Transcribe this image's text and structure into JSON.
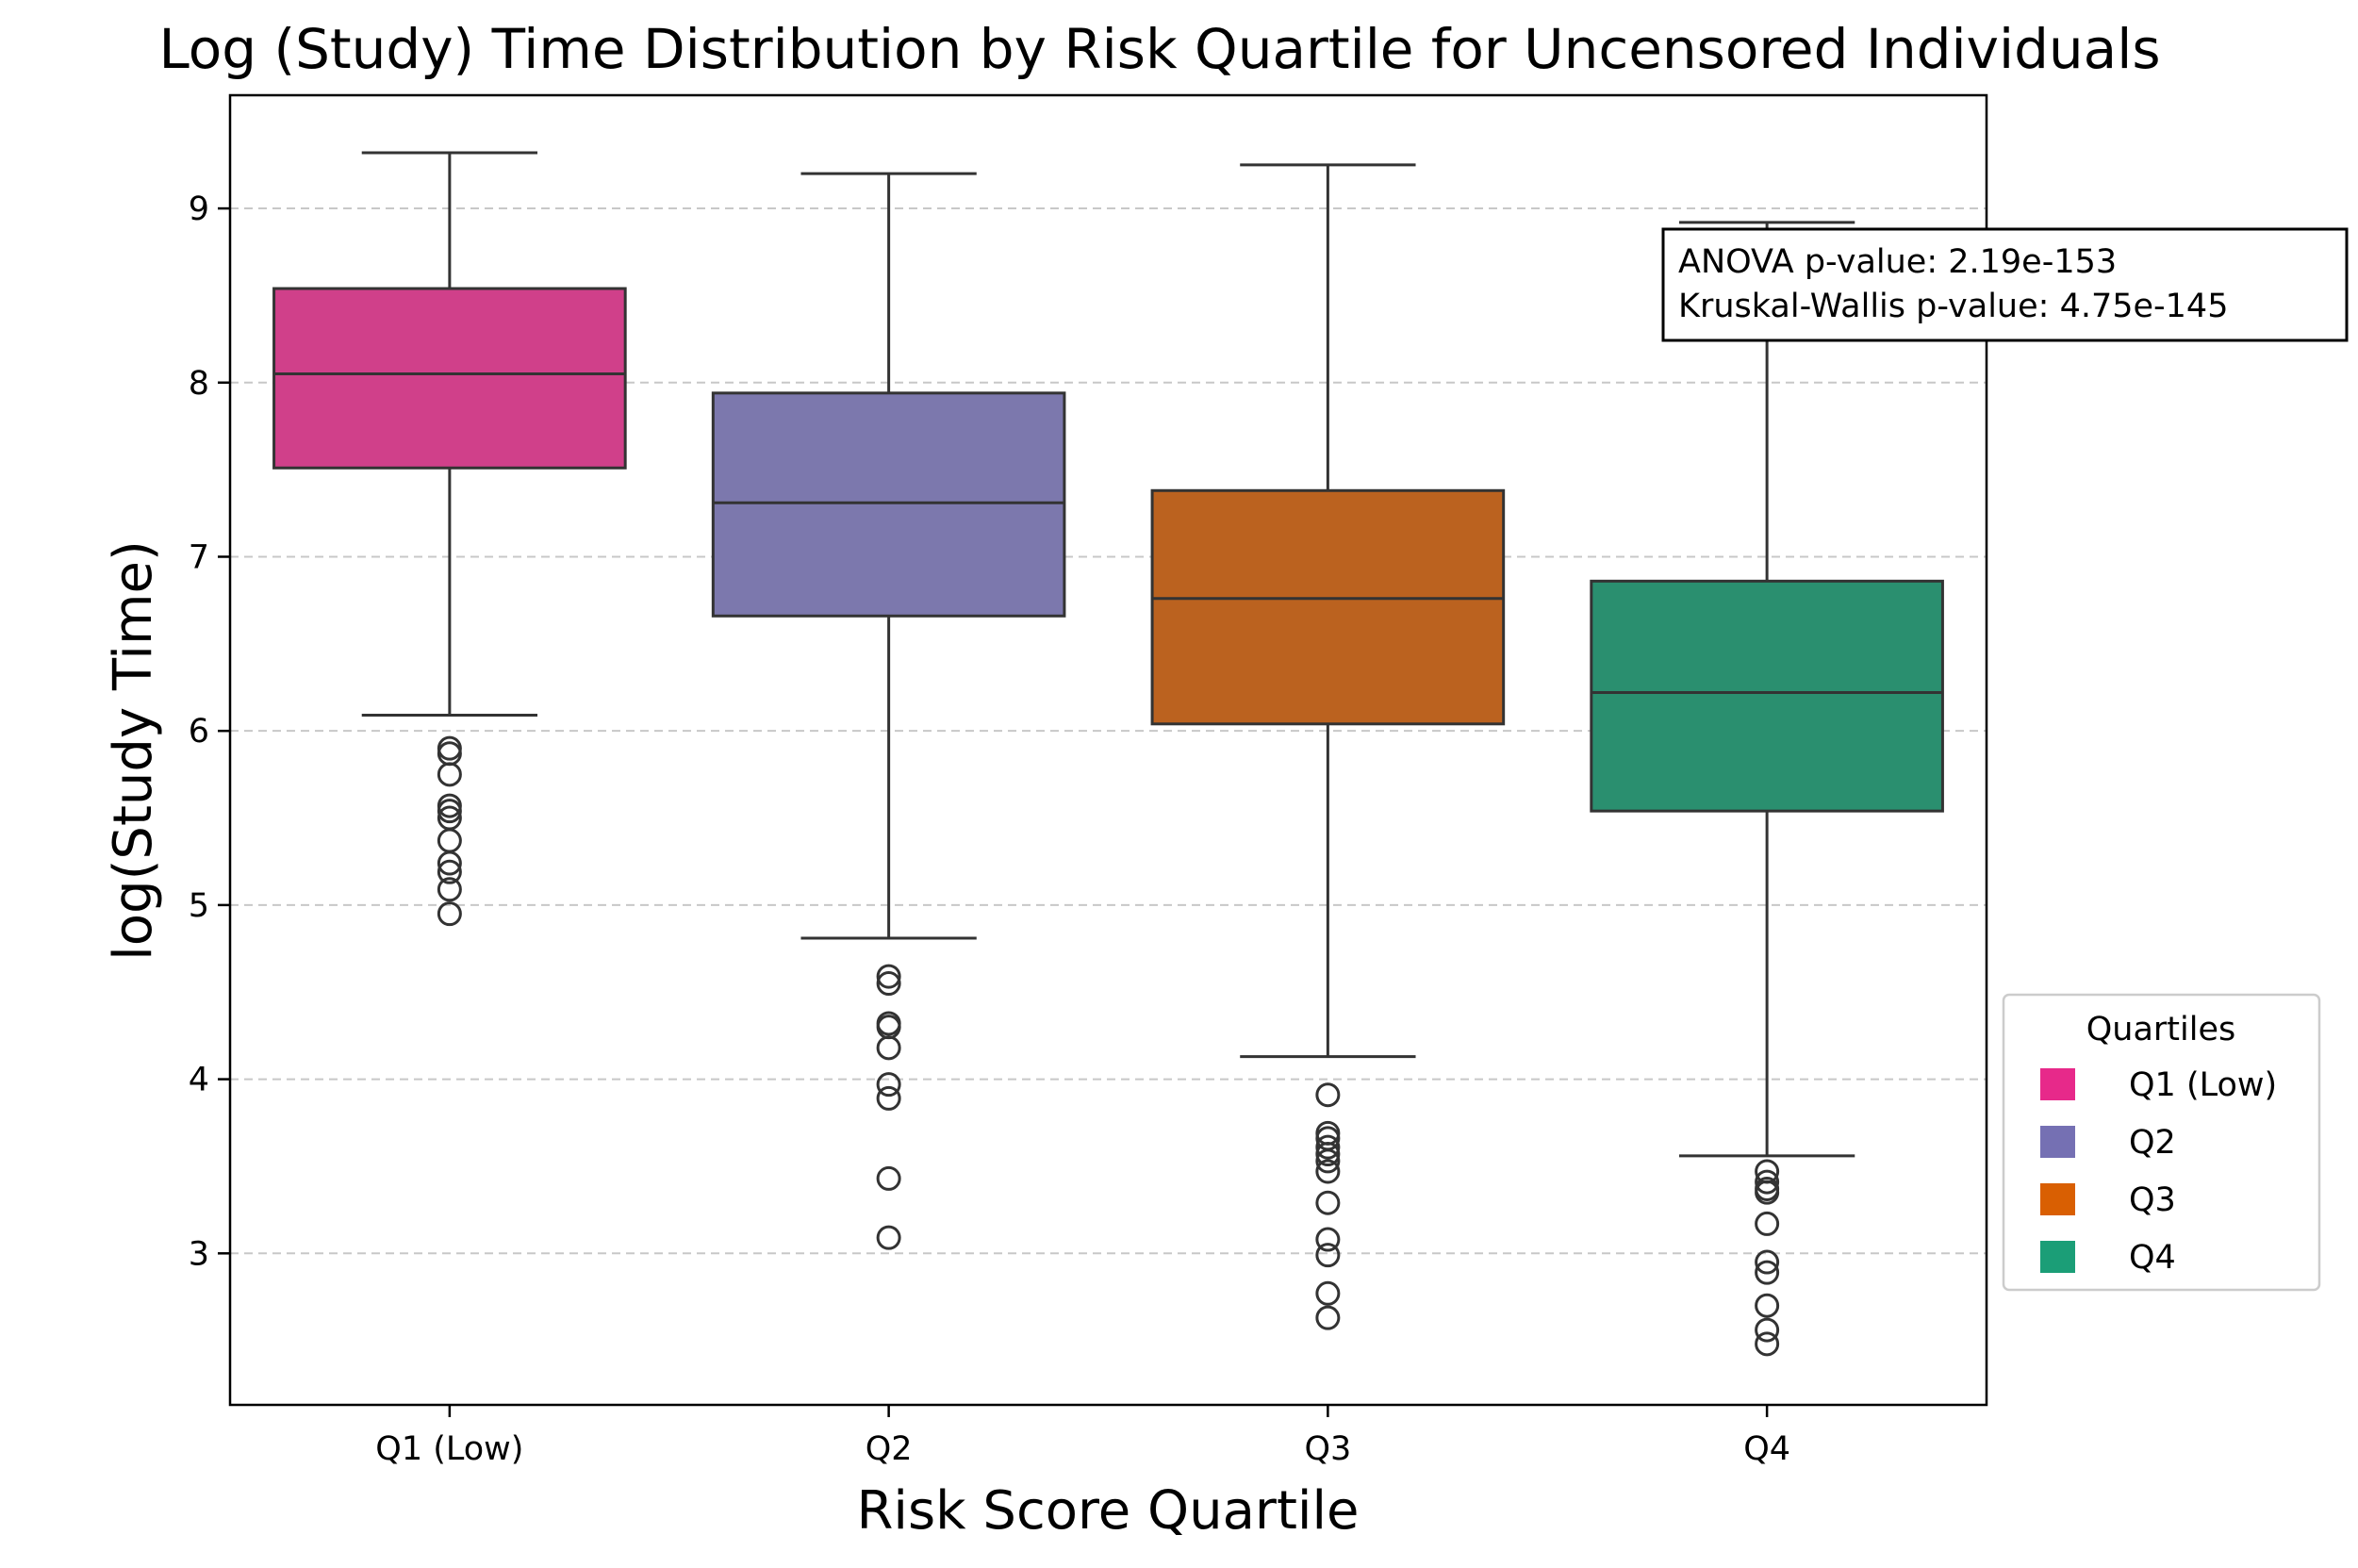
{
  "chart_data": {
    "type": "box",
    "title": "Log (Study) Time Distribution by Risk Quartile for Uncensored Individuals",
    "xlabel": "Risk Score Quartile",
    "ylabel": "log(Study Time)",
    "categories": [
      "Q1 (Low)",
      "Q2",
      "Q3",
      "Q4"
    ],
    "y_ticks": [
      "3",
      "4",
      "5",
      "6",
      "7",
      "8",
      "9"
    ],
    "ylim": [
      2.13,
      9.65
    ],
    "grid": "y dashed",
    "boxes": [
      {
        "category": "Q1 (Low)",
        "whisker_low": 6.09,
        "q1": 7.51,
        "median": 8.05,
        "q3": 8.54,
        "whisker_high": 9.32,
        "outliers": [
          5.9,
          5.87,
          5.75,
          5.57,
          5.54,
          5.5,
          5.37,
          5.24,
          5.19,
          5.09,
          4.95
        ]
      },
      {
        "category": "Q2",
        "whisker_low": 4.81,
        "q1": 6.66,
        "median": 7.31,
        "q3": 7.94,
        "whisker_high": 9.2,
        "outliers": [
          4.59,
          4.55,
          4.32,
          4.3,
          4.18,
          3.97,
          3.89,
          3.43,
          3.09
        ]
      },
      {
        "category": "Q3",
        "whisker_low": 4.13,
        "q1": 6.04,
        "median": 6.76,
        "q3": 7.38,
        "whisker_high": 9.25,
        "outliers": [
          3.91,
          3.69,
          3.66,
          3.61,
          3.57,
          3.53,
          3.47,
          3.29,
          3.08,
          2.99,
          2.77,
          2.63
        ]
      },
      {
        "category": "Q4",
        "whisker_low": 3.56,
        "q1": 5.54,
        "median": 6.22,
        "q3": 6.86,
        "whisker_high": 8.92,
        "outliers": [
          3.47,
          3.41,
          3.37,
          3.35,
          3.17,
          2.95,
          2.89,
          2.7,
          2.56,
          2.48
        ]
      }
    ],
    "annotation": [
      "ANOVA p-value: 2.19e-153",
      "Kruskal-Wallis p-value: 4.75e-145"
    ],
    "legend": {
      "title": "Quartiles",
      "placement": "right",
      "entries": [
        {
          "label": "Q1 (Low)",
          "color": "#e7298a"
        },
        {
          "label": "Q2",
          "color": "#7570b3"
        },
        {
          "label": "Q3",
          "color": "#d95f02"
        },
        {
          "label": "Q4",
          "color": "#1b9e77"
        }
      ]
    },
    "box_colors": [
      "#d0408a",
      "#7c78ad",
      "#bb621f",
      "#2a8f6f"
    ],
    "line_color": "#333333"
  }
}
